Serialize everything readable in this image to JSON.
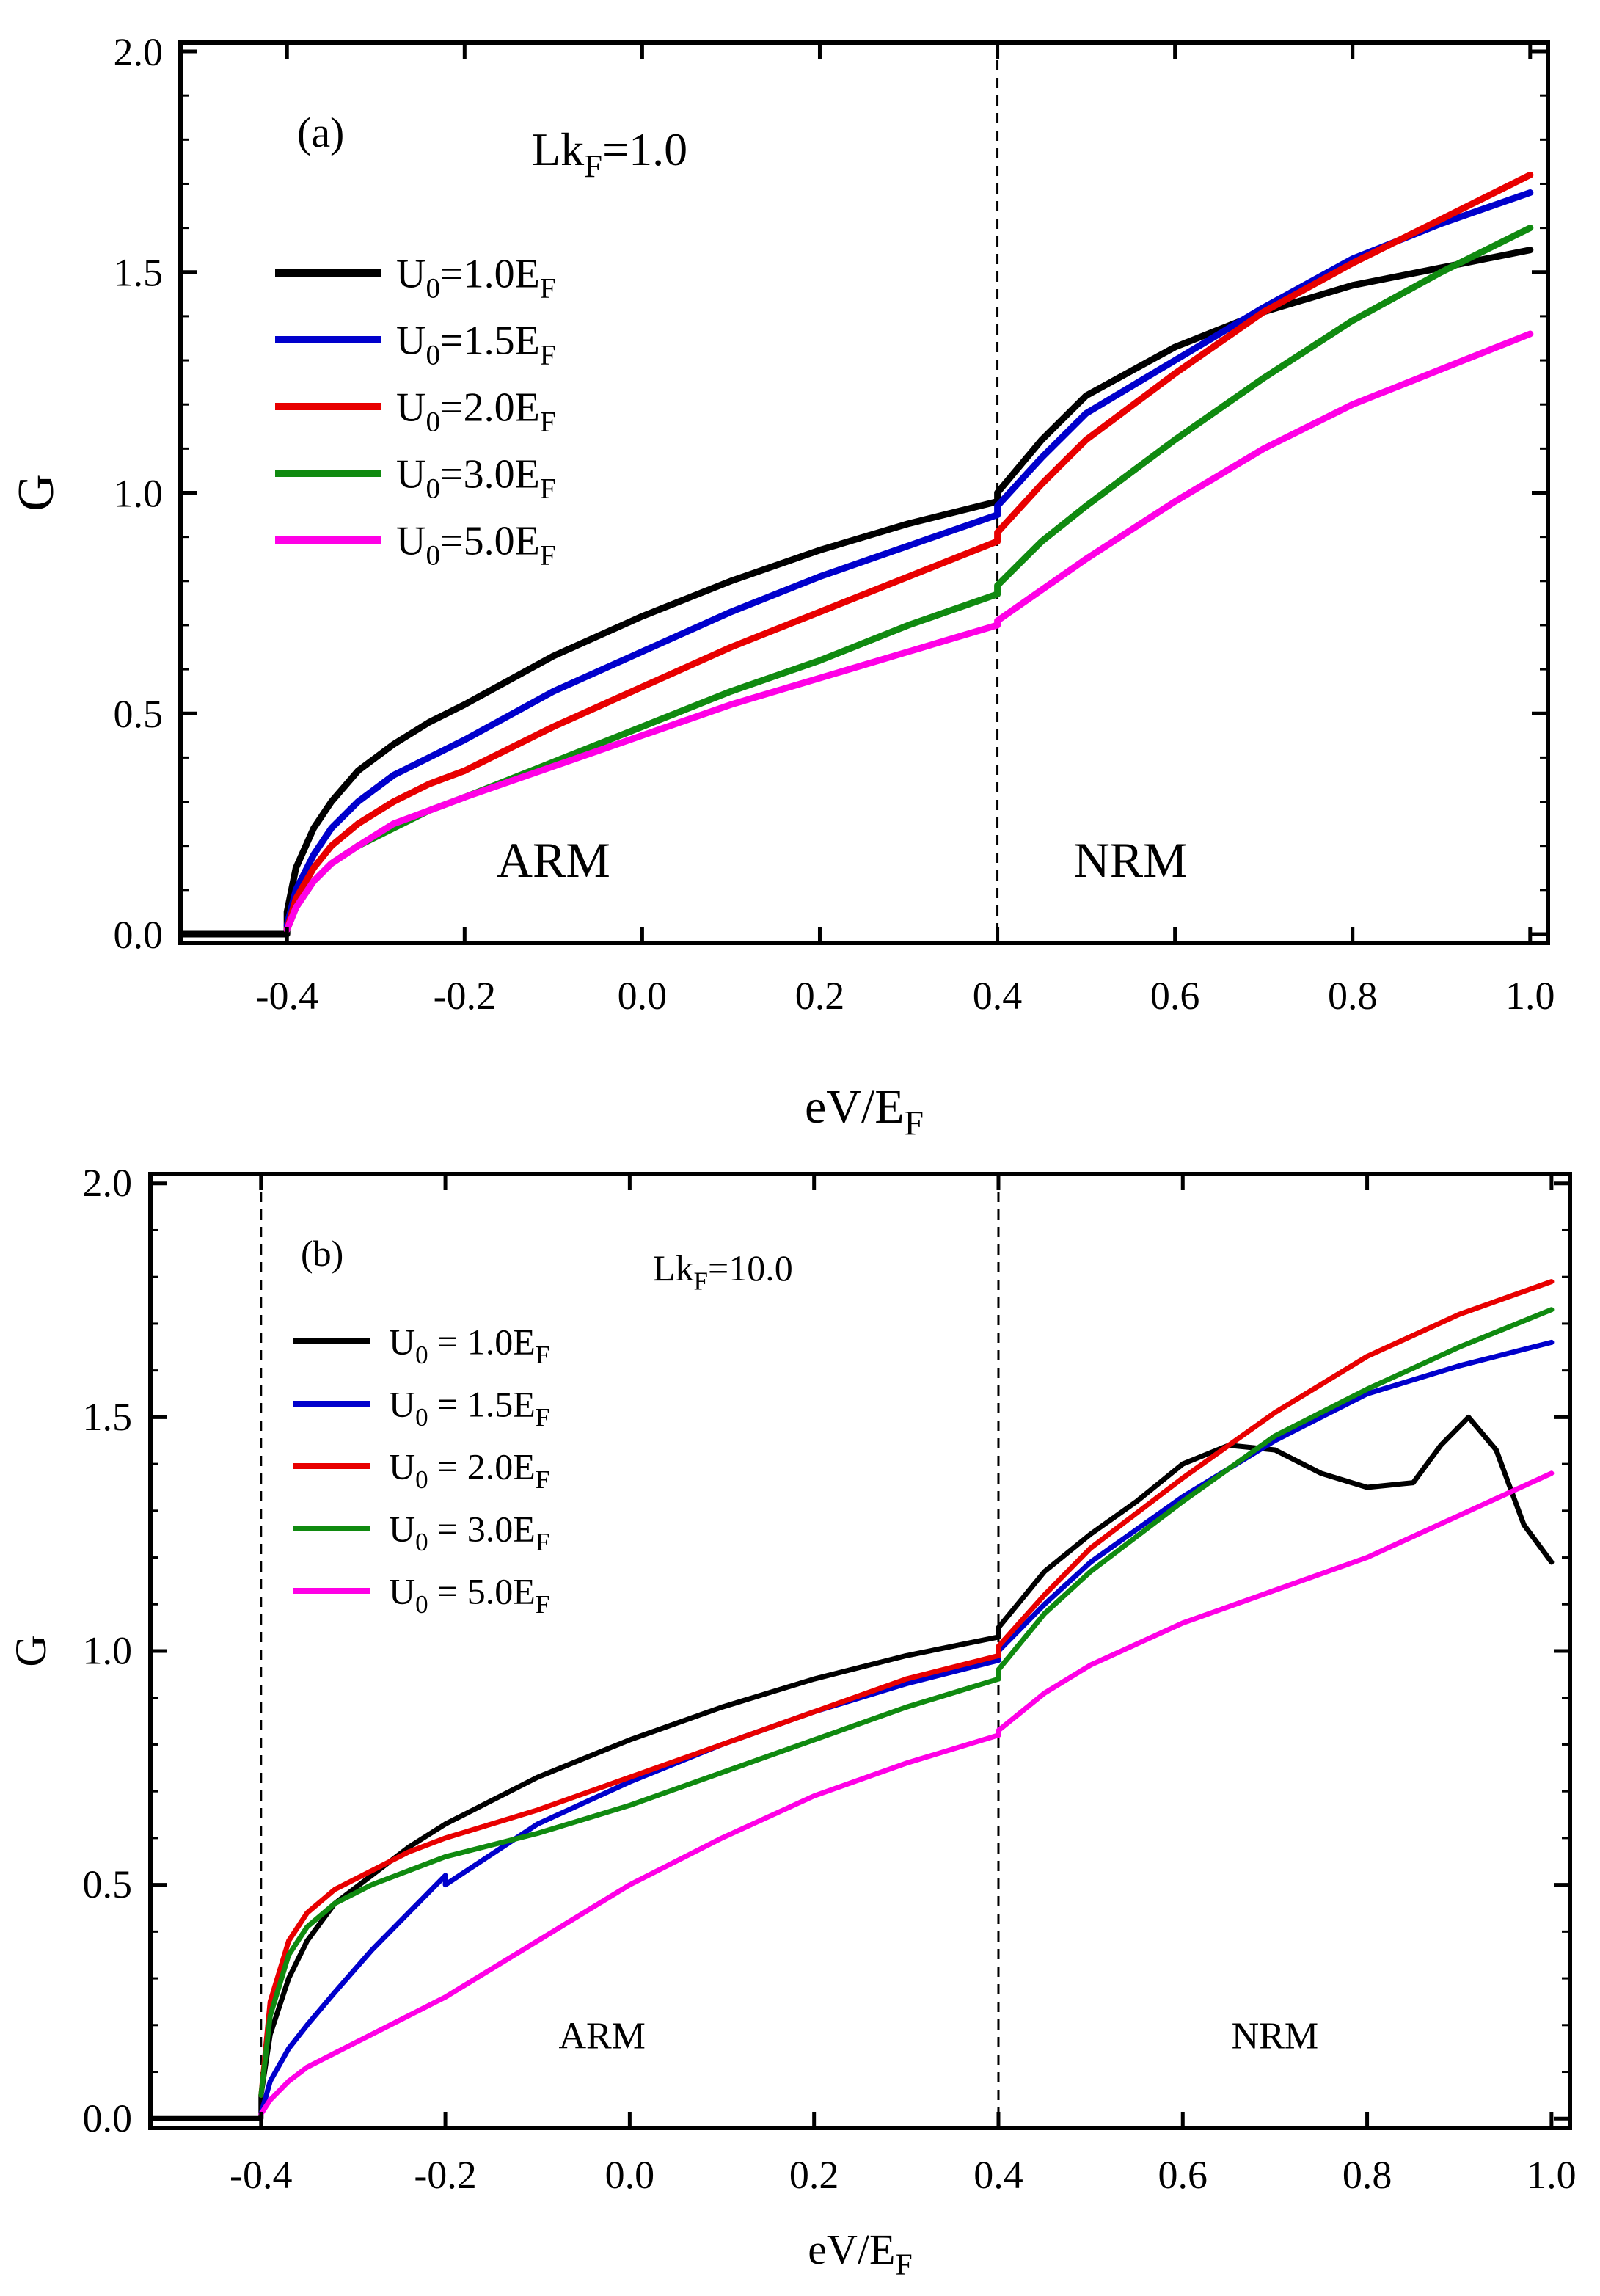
{
  "chart_data": [
    {
      "type": "line",
      "panel_label": "(a)",
      "annotation": {
        "main": "Lk",
        "sub": "F",
        "rest": "=1.0"
      },
      "xlabel": {
        "main": "eV/E",
        "sub": "F"
      },
      "ylabel": "G",
      "xlim": [
        -0.52,
        1.02
      ],
      "ylim": [
        -0.02,
        2.02
      ],
      "xticks": [
        "-0.4",
        "-0.2",
        "0.0",
        "0.2",
        "0.4",
        "0.6",
        "0.8",
        "1.0"
      ],
      "xtick_values": [
        -0.4,
        -0.2,
        0.0,
        0.2,
        0.4,
        0.6,
        0.8,
        1.0
      ],
      "yticks": [
        "0.0",
        "0.5",
        "1.0",
        "1.5",
        "2.0"
      ],
      "ytick_values": [
        0.0,
        0.5,
        1.0,
        1.5,
        2.0
      ],
      "vlines": [
        0.4
      ],
      "region_labels": [
        {
          "text": "ARM",
          "x": -0.1,
          "y": 0.13
        },
        {
          "text": "NRM",
          "x": 0.55,
          "y": 0.13
        }
      ],
      "legend": {
        "position": "upper-left"
      },
      "series": [
        {
          "name": "U0=1.0EF",
          "label_main": "U",
          "label_sub0": "0",
          "label_mid": "=1.0E",
          "label_sub1": "F",
          "color": "#000000",
          "x": [
            -0.52,
            -0.4,
            -0.4,
            -0.39,
            -0.37,
            -0.35,
            -0.32,
            -0.28,
            -0.24,
            -0.2,
            -0.1,
            0.0,
            0.1,
            0.2,
            0.3,
            0.4,
            0.4,
            0.45,
            0.5,
            0.6,
            0.7,
            0.8,
            0.9,
            1.0
          ],
          "y": [
            0.0,
            0.0,
            0.05,
            0.15,
            0.24,
            0.3,
            0.37,
            0.43,
            0.48,
            0.52,
            0.63,
            0.72,
            0.8,
            0.87,
            0.93,
            0.98,
            1.0,
            1.12,
            1.22,
            1.33,
            1.41,
            1.47,
            1.51,
            1.55
          ]
        },
        {
          "name": "U0=1.5EF",
          "label_main": "U",
          "label_sub0": "0",
          "label_mid": "=1.5E",
          "label_sub1": "F",
          "color": "#0000cc",
          "x": [
            -0.4,
            -0.39,
            -0.37,
            -0.35,
            -0.32,
            -0.28,
            -0.24,
            -0.2,
            -0.1,
            0.0,
            0.1,
            0.2,
            0.3,
            0.4,
            0.4,
            0.45,
            0.5,
            0.6,
            0.7,
            0.8,
            0.9,
            1.0
          ],
          "y": [
            0.02,
            0.1,
            0.18,
            0.24,
            0.3,
            0.36,
            0.4,
            0.44,
            0.55,
            0.64,
            0.73,
            0.81,
            0.88,
            0.95,
            0.97,
            1.08,
            1.18,
            1.3,
            1.42,
            1.53,
            1.61,
            1.68
          ]
        },
        {
          "name": "U0=2.0EF",
          "label_main": "U",
          "label_sub0": "0",
          "label_mid": "=2.0E",
          "label_sub1": "F",
          "color": "#e80000",
          "x": [
            -0.4,
            -0.39,
            -0.37,
            -0.35,
            -0.32,
            -0.28,
            -0.24,
            -0.2,
            -0.1,
            0.0,
            0.1,
            0.2,
            0.3,
            0.4,
            0.4,
            0.45,
            0.5,
            0.6,
            0.7,
            0.8,
            0.9,
            1.0
          ],
          "y": [
            0.01,
            0.08,
            0.15,
            0.2,
            0.25,
            0.3,
            0.34,
            0.37,
            0.47,
            0.56,
            0.65,
            0.73,
            0.81,
            0.89,
            0.91,
            1.02,
            1.12,
            1.27,
            1.41,
            1.52,
            1.62,
            1.72
          ]
        },
        {
          "name": "U0=3.0EF",
          "label_main": "U",
          "label_sub0": "0",
          "label_mid": "=3.0E",
          "label_sub1": "F",
          "color": "#108a10",
          "x": [
            -0.4,
            -0.39,
            -0.37,
            -0.35,
            -0.32,
            -0.28,
            -0.24,
            -0.2,
            -0.1,
            0.0,
            0.1,
            0.2,
            0.3,
            0.4,
            0.4,
            0.45,
            0.5,
            0.6,
            0.7,
            0.8,
            0.9,
            1.0
          ],
          "y": [
            0.01,
            0.06,
            0.12,
            0.16,
            0.2,
            0.24,
            0.28,
            0.31,
            0.39,
            0.47,
            0.55,
            0.62,
            0.7,
            0.77,
            0.79,
            0.89,
            0.97,
            1.12,
            1.26,
            1.39,
            1.5,
            1.6
          ]
        },
        {
          "name": "U0=5.0EF",
          "label_main": "U",
          "label_sub0": "0",
          "label_mid": "=5.0E",
          "label_sub1": "F",
          "color": "#ff00e6",
          "x": [
            -0.4,
            -0.39,
            -0.37,
            -0.35,
            -0.32,
            -0.28,
            -0.24,
            -0.2,
            -0.1,
            0.0,
            0.1,
            0.2,
            0.3,
            0.4,
            0.4,
            0.45,
            0.5,
            0.6,
            0.7,
            0.8,
            0.9,
            1.0
          ],
          "y": [
            0.01,
            0.06,
            0.12,
            0.16,
            0.2,
            0.25,
            0.28,
            0.31,
            0.38,
            0.45,
            0.52,
            0.58,
            0.64,
            0.7,
            0.71,
            0.78,
            0.85,
            0.98,
            1.1,
            1.2,
            1.28,
            1.36
          ]
        }
      ]
    },
    {
      "type": "line",
      "panel_label": "(b)",
      "annotation": {
        "main": "Lk",
        "sub": "F",
        "rest": "=10.0"
      },
      "xlabel": {
        "main": "eV/E",
        "sub": "F"
      },
      "ylabel": "G",
      "xlim": [
        -0.52,
        1.02
      ],
      "ylim": [
        -0.02,
        2.02
      ],
      "xticks": [
        "-0.4",
        "-0.2",
        "0.0",
        "0.2",
        "0.4",
        "0.6",
        "0.8",
        "1.0"
      ],
      "xtick_values": [
        -0.4,
        -0.2,
        0.0,
        0.2,
        0.4,
        0.6,
        0.8,
        1.0
      ],
      "yticks": [
        "0.0",
        "0.5",
        "1.0",
        "1.5",
        "2.0"
      ],
      "ytick_values": [
        0.0,
        0.5,
        1.0,
        1.5,
        2.0
      ],
      "vlines": [
        -0.4,
        0.4
      ],
      "region_labels": [
        {
          "text": "ARM",
          "x": -0.03,
          "y": 0.15
        },
        {
          "text": "NRM",
          "x": 0.7,
          "y": 0.15
        }
      ],
      "legend": {
        "position": "upper-left"
      },
      "series": [
        {
          "name": "U0 = 1.0EF",
          "label_main": "U",
          "label_sub0": "0",
          "label_mid": " = 1.0E",
          "label_sub1": "F",
          "color": "#000000",
          "x": [
            -0.52,
            -0.4,
            -0.4,
            -0.39,
            -0.37,
            -0.35,
            -0.32,
            -0.28,
            -0.24,
            -0.2,
            -0.1,
            0.0,
            0.1,
            0.2,
            0.3,
            0.4,
            0.4,
            0.45,
            0.5,
            0.55,
            0.6,
            0.65,
            0.7,
            0.75,
            0.8,
            0.85,
            0.88,
            0.91,
            0.94,
            0.97,
            1.0
          ],
          "y": [
            0.0,
            0.0,
            0.05,
            0.18,
            0.3,
            0.38,
            0.46,
            0.52,
            0.58,
            0.63,
            0.73,
            0.81,
            0.88,
            0.94,
            0.99,
            1.03,
            1.05,
            1.17,
            1.25,
            1.32,
            1.4,
            1.44,
            1.43,
            1.38,
            1.35,
            1.36,
            1.44,
            1.5,
            1.43,
            1.27,
            1.19
          ]
        },
        {
          "name": "U0 = 1.5EF",
          "label_main": "U",
          "label_sub0": "0",
          "label_mid": " = 1.5E",
          "label_sub1": "F",
          "color": "#0000cc",
          "x": [
            -0.4,
            -0.39,
            -0.37,
            -0.35,
            -0.32,
            -0.28,
            -0.24,
            -0.2,
            -0.2,
            -0.1,
            0.0,
            0.1,
            0.2,
            0.3,
            0.4,
            0.4,
            0.45,
            0.5,
            0.6,
            0.7,
            0.8,
            0.9,
            1.0
          ],
          "y": [
            0.01,
            0.08,
            0.15,
            0.2,
            0.27,
            0.36,
            0.44,
            0.52,
            0.5,
            0.63,
            0.72,
            0.8,
            0.87,
            0.93,
            0.98,
            1.0,
            1.1,
            1.19,
            1.33,
            1.45,
            1.55,
            1.61,
            1.66
          ]
        },
        {
          "name": "U0 = 2.0EF",
          "label_main": "U",
          "label_sub0": "0",
          "label_mid": " = 2.0E",
          "label_sub1": "F",
          "color": "#e80000",
          "x": [
            -0.4,
            -0.39,
            -0.37,
            -0.35,
            -0.32,
            -0.28,
            -0.24,
            -0.2,
            -0.1,
            0.0,
            0.1,
            0.2,
            0.3,
            0.4,
            0.4,
            0.45,
            0.5,
            0.6,
            0.7,
            0.8,
            0.9,
            1.0
          ],
          "y": [
            0.05,
            0.25,
            0.38,
            0.44,
            0.49,
            0.53,
            0.57,
            0.6,
            0.66,
            0.73,
            0.8,
            0.87,
            0.94,
            0.99,
            1.01,
            1.12,
            1.22,
            1.37,
            1.51,
            1.63,
            1.72,
            1.79
          ]
        },
        {
          "name": "U0 = 3.0EF",
          "label_main": "U",
          "label_sub0": "0",
          "label_mid": " = 3.0E",
          "label_sub1": "F",
          "color": "#108a10",
          "x": [
            -0.4,
            -0.39,
            -0.37,
            -0.35,
            -0.32,
            -0.28,
            -0.24,
            -0.2,
            -0.1,
            0.0,
            0.1,
            0.2,
            0.3,
            0.4,
            0.4,
            0.45,
            0.5,
            0.6,
            0.7,
            0.8,
            0.9,
            1.0
          ],
          "y": [
            0.05,
            0.22,
            0.35,
            0.41,
            0.46,
            0.5,
            0.53,
            0.56,
            0.61,
            0.67,
            0.74,
            0.81,
            0.88,
            0.94,
            0.96,
            1.08,
            1.17,
            1.32,
            1.46,
            1.56,
            1.65,
            1.73
          ]
        },
        {
          "name": "U0 = 5.0EF",
          "label_main": "U",
          "label_sub0": "0",
          "label_mid": " = 5.0E",
          "label_sub1": "F",
          "color": "#ff00e6",
          "x": [
            -0.4,
            -0.39,
            -0.37,
            -0.35,
            -0.32,
            -0.28,
            -0.24,
            -0.2,
            -0.1,
            0.0,
            0.1,
            0.2,
            0.3,
            0.4,
            0.4,
            0.45,
            0.5,
            0.6,
            0.7,
            0.8,
            0.9,
            1.0
          ],
          "y": [
            0.01,
            0.04,
            0.08,
            0.11,
            0.14,
            0.18,
            0.22,
            0.26,
            0.38,
            0.5,
            0.6,
            0.69,
            0.76,
            0.82,
            0.83,
            0.91,
            0.97,
            1.06,
            1.13,
            1.2,
            1.29,
            1.38
          ]
        }
      ]
    }
  ]
}
